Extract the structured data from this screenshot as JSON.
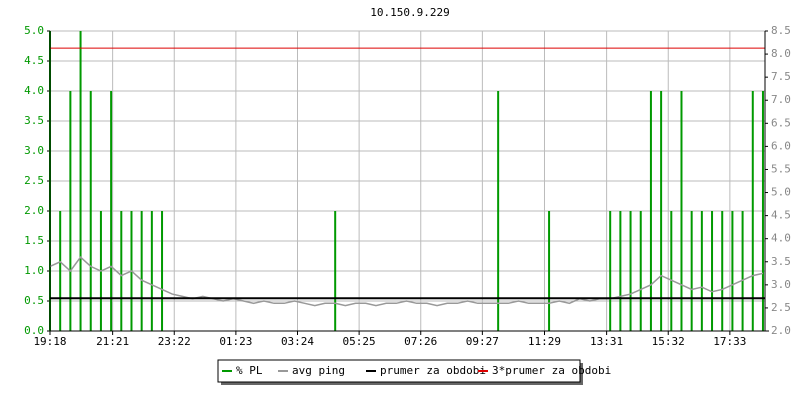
{
  "chart_data": {
    "type": "mixed",
    "title": "10.150.9.229",
    "x": [
      0,
      20,
      40,
      60,
      80,
      100,
      120,
      140,
      160,
      180,
      200,
      220,
      240,
      260,
      280,
      300,
      320,
      340,
      360,
      380,
      400,
      420,
      440,
      460,
      480,
      500,
      520,
      540,
      560,
      580,
      600,
      620,
      640,
      660,
      680,
      700,
      720,
      740,
      760,
      780,
      800,
      820,
      840,
      860,
      880,
      900,
      920,
      940,
      960,
      980,
      1000,
      1020,
      1040,
      1060,
      1080,
      1100,
      1120,
      1140,
      1160,
      1180,
      1200,
      1220,
      1240,
      1260,
      1280,
      1300,
      1320,
      1340,
      1360,
      1380,
      1400
    ],
    "xlim": [
      0,
      1404
    ],
    "xticks": [
      {
        "value": 0,
        "label": "19:18"
      },
      {
        "value": 123,
        "label": "21:21"
      },
      {
        "value": 244,
        "label": "23:22"
      },
      {
        "value": 365,
        "label": "01:23"
      },
      {
        "value": 486,
        "label": "03:24"
      },
      {
        "value": 607,
        "label": "05:25"
      },
      {
        "value": 728,
        "label": "07:26"
      },
      {
        "value": 849,
        "label": "09:27"
      },
      {
        "value": 971,
        "label": "11:29"
      },
      {
        "value": 1093,
        "label": "13:31"
      },
      {
        "value": 1214,
        "label": "15:32"
      },
      {
        "value": 1335,
        "label": "17:33"
      }
    ],
    "ylim": [
      0,
      5
    ],
    "yticks": [
      {
        "value": 0,
        "label": "0.0"
      },
      0.5,
      {
        "value": 1,
        "label": "1.0"
      },
      1.5,
      {
        "value": 2,
        "label": "2.0"
      },
      2.5,
      {
        "value": 3,
        "label": "3.0"
      },
      3.5,
      {
        "value": 4,
        "label": "4.0"
      },
      4.5,
      {
        "value": 5,
        "label": "5.0"
      }
    ],
    "y2lim": [
      2,
      8.5
    ],
    "y2ticks": [
      {
        "value": 2,
        "label": "2.0"
      },
      2.5,
      {
        "value": 3,
        "label": "3.0"
      },
      3.5,
      {
        "value": 4,
        "label": "4.0"
      },
      4.5,
      {
        "value": 5,
        "label": "5.0"
      },
      5.5,
      {
        "value": 6,
        "label": "6.0"
      },
      6.5,
      {
        "value": 7,
        "label": "7.0"
      },
      7.5,
      {
        "value": 8,
        "label": "8.0"
      },
      8.5
    ],
    "grid": true,
    "series": [
      {
        "name": "% PL",
        "type": "bar",
        "color": "#009900",
        "values": [
          5,
          2,
          4,
          5,
          4,
          2,
          4,
          2,
          2,
          2,
          2,
          2,
          0,
          0,
          0,
          0,
          0,
          0,
          0,
          0,
          0,
          0,
          0,
          0,
          0,
          0,
          0,
          0,
          2,
          0,
          0,
          0,
          0,
          0,
          0,
          0,
          0,
          0,
          0,
          0,
          0,
          0,
          0,
          0,
          4,
          0,
          0,
          0,
          0,
          2,
          0,
          0,
          0,
          0,
          0,
          2,
          2,
          2,
          2,
          4,
          4,
          2,
          4,
          2,
          2,
          2,
          2,
          2,
          2,
          4,
          4
        ]
      },
      {
        "name": "avg ping",
        "type": "line",
        "axis": "y2",
        "color": "#999999",
        "values": [
          3.4,
          3.5,
          3.3,
          3.6,
          3.4,
          3.3,
          3.4,
          3.2,
          3.3,
          3.1,
          3.0,
          2.9,
          2.8,
          2.75,
          2.7,
          2.75,
          2.7,
          2.65,
          2.7,
          2.65,
          2.6,
          2.65,
          2.6,
          2.6,
          2.65,
          2.6,
          2.55,
          2.6,
          2.6,
          2.55,
          2.6,
          2.6,
          2.55,
          2.6,
          2.6,
          2.65,
          2.6,
          2.6,
          2.55,
          2.6,
          2.6,
          2.65,
          2.6,
          2.6,
          2.6,
          2.6,
          2.65,
          2.6,
          2.6,
          2.6,
          2.65,
          2.6,
          2.7,
          2.65,
          2.7,
          2.7,
          2.75,
          2.8,
          2.9,
          3.0,
          3.2,
          3.1,
          3.0,
          2.9,
          2.95,
          2.85,
          2.9,
          3.0,
          3.1,
          3.2,
          3.25
        ]
      },
      {
        "name": "prumer za obdobi",
        "type": "hline",
        "axis": "y2",
        "color": "#000000",
        "value": 2.71
      },
      {
        "name": "3*prumer za obdobi",
        "type": "hline",
        "axis": "y2",
        "color": "#dd0000",
        "value": 8.13
      }
    ]
  }
}
